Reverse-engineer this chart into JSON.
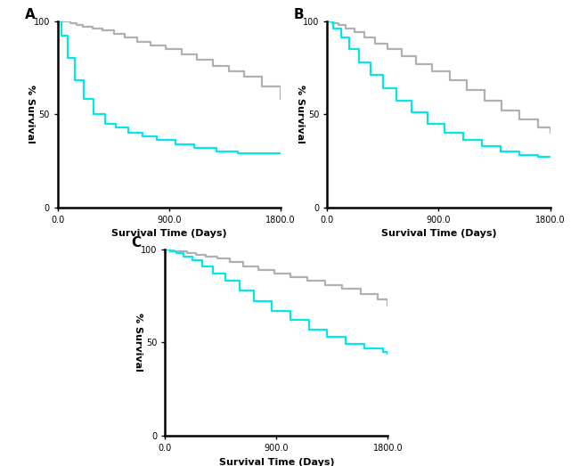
{
  "background_color": "#ffffff",
  "xlabel": "Survival Time (Days)",
  "ylabel": "% Survival",
  "xlim": [
    0,
    1800
  ],
  "ylim": [
    0,
    100
  ],
  "xticks": [
    0.0,
    900.0,
    1800.0
  ],
  "yticks": [
    0,
    50,
    100
  ],
  "color_gray": "#b0b0b0",
  "color_cyan": "#00e8e8",
  "linewidth": 1.6,
  "A_gray_x": [
    0,
    50,
    100,
    150,
    200,
    280,
    360,
    450,
    540,
    640,
    750,
    870,
    1000,
    1120,
    1250,
    1380,
    1500,
    1650,
    1800
  ],
  "A_gray_y": [
    100,
    100,
    99,
    98,
    97,
    96,
    95,
    93,
    91,
    89,
    87,
    85,
    82,
    79,
    76,
    73,
    70,
    65,
    58
  ],
  "A_cyan_x": [
    0,
    30,
    80,
    140,
    210,
    290,
    380,
    470,
    570,
    680,
    800,
    950,
    1100,
    1280,
    1450,
    1650,
    1800
  ],
  "A_cyan_y": [
    100,
    92,
    80,
    68,
    58,
    50,
    45,
    43,
    40,
    38,
    36,
    34,
    32,
    30,
    29,
    29,
    29
  ],
  "B_gray_x": [
    0,
    40,
    90,
    150,
    220,
    300,
    390,
    490,
    600,
    720,
    850,
    990,
    1130,
    1270,
    1410,
    1550,
    1700,
    1800
  ],
  "B_gray_y": [
    100,
    99,
    98,
    96,
    94,
    91,
    88,
    85,
    81,
    77,
    73,
    68,
    63,
    57,
    52,
    47,
    43,
    40
  ],
  "B_cyan_x": [
    0,
    50,
    110,
    180,
    260,
    350,
    450,
    560,
    680,
    810,
    950,
    1100,
    1250,
    1400,
    1550,
    1700,
    1800
  ],
  "B_cyan_y": [
    100,
    96,
    91,
    85,
    78,
    71,
    64,
    57,
    51,
    45,
    40,
    36,
    33,
    30,
    28,
    27,
    27
  ],
  "C_gray_x": [
    0,
    30,
    70,
    120,
    180,
    250,
    330,
    420,
    520,
    630,
    750,
    880,
    1010,
    1150,
    1290,
    1430,
    1580,
    1720,
    1800
  ],
  "C_gray_y": [
    100,
    100,
    99,
    99,
    98,
    97,
    96,
    95,
    93,
    91,
    89,
    87,
    85,
    83,
    81,
    79,
    76,
    73,
    70
  ],
  "C_cyan_x": [
    0,
    40,
    90,
    150,
    220,
    300,
    390,
    490,
    600,
    720,
    860,
    1010,
    1160,
    1310,
    1460,
    1610,
    1760,
    1800
  ],
  "C_cyan_y": [
    100,
    99,
    98,
    96,
    94,
    91,
    87,
    83,
    78,
    72,
    67,
    62,
    57,
    53,
    49,
    47,
    45,
    44
  ]
}
